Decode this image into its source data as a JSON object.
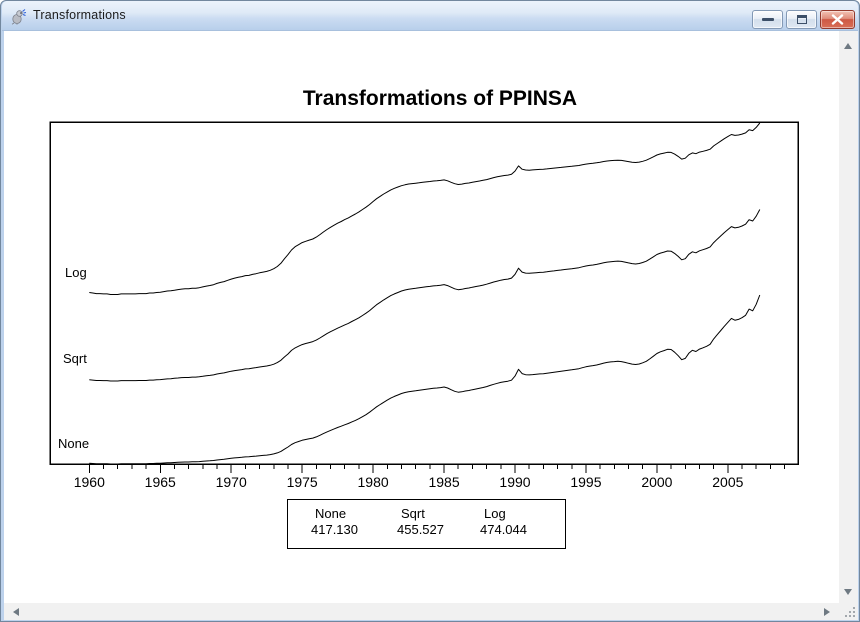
{
  "window": {
    "title": "Transformations"
  },
  "chart_data": {
    "type": "line",
    "title": "Transformations of PPINSA",
    "xlabel": "",
    "ylabel": "",
    "grid": false,
    "legend_position": "bottom",
    "x_axis": {
      "start_year": 1960,
      "end_year": 2009,
      "minor_tick_step": 1,
      "major_tick_step": 5,
      "tick_labels": [
        "1960",
        "1965",
        "1970",
        "1975",
        "1980",
        "1985",
        "1990",
        "1995",
        "2000",
        "2005"
      ]
    },
    "transforms": [
      {
        "label": "Log"
      },
      {
        "label": "Sqrt"
      },
      {
        "label": "None"
      }
    ],
    "x_start": 1960.0,
    "x_step": 0.25,
    "values_none": [
      32.2,
      32.0,
      31.8,
      31.8,
      31.7,
      31.7,
      31.5,
      31.5,
      31.5,
      31.7,
      31.7,
      31.7,
      31.7,
      31.7,
      31.8,
      31.8,
      31.8,
      32.0,
      32.0,
      32.2,
      32.3,
      32.5,
      32.7,
      32.8,
      33.0,
      33.2,
      33.4,
      33.5,
      33.5,
      33.7,
      33.7,
      33.9,
      34.2,
      34.5,
      34.7,
      35.0,
      35.5,
      35.9,
      36.2,
      36.7,
      37.2,
      37.6,
      37.9,
      38.2,
      38.6,
      38.7,
      39.1,
      39.4,
      39.8,
      40.1,
      40.4,
      40.9,
      41.6,
      42.6,
      44.1,
      46.3,
      48.4,
      50.9,
      52.7,
      53.9,
      55.1,
      55.9,
      56.6,
      57.3,
      58.5,
      60.1,
      61.8,
      63.5,
      65.0,
      66.5,
      67.9,
      69.2,
      70.6,
      71.9,
      73.5,
      75.0,
      76.7,
      78.7,
      80.7,
      83.1,
      85.8,
      88.5,
      90.8,
      93.0,
      95.2,
      97.2,
      98.9,
      100.3,
      101.8,
      102.8,
      103.6,
      104.1,
      104.5,
      105.0,
      105.5,
      106.0,
      106.5,
      107.0,
      107.3,
      107.7,
      108.3,
      107.3,
      105.6,
      104.0,
      103.1,
      103.5,
      104.3,
      104.8,
      105.6,
      106.3,
      107.0,
      107.8,
      108.7,
      109.9,
      111.0,
      112.0,
      112.9,
      113.6,
      114.1,
      115.1,
      119.1,
      125.9,
      121.6,
      120.5,
      120.3,
      120.6,
      121.0,
      121.3,
      121.5,
      122.0,
      122.5,
      123.0,
      123.5,
      124.0,
      124.5,
      125.0,
      125.4,
      125.9,
      126.5,
      127.5,
      128.4,
      129.1,
      129.6,
      130.2,
      131.1,
      132.1,
      132.8,
      133.3,
      133.6,
      134.0,
      133.6,
      132.8,
      131.9,
      131.1,
      130.7,
      131.2,
      132.4,
      133.9,
      136.3,
      139.0,
      141.7,
      143.4,
      144.6,
      145.9,
      145.7,
      143.0,
      139.5,
      135.5,
      136.8,
      141.9,
      144.9,
      143.7,
      146.1,
      147.4,
      148.9,
      150.8,
      156.2,
      160.4,
      164.6,
      168.8,
      172.7,
      176.7,
      174.9,
      175.7,
      177.4,
      179.8,
      185.9,
      184.2,
      190.7,
      200.0
    ],
    "legend": {
      "columns": [
        {
          "label": "None",
          "value": "417.130"
        },
        {
          "label": "Sqrt",
          "value": "455.527"
        },
        {
          "label": "Log",
          "value": "474.044"
        }
      ]
    }
  }
}
